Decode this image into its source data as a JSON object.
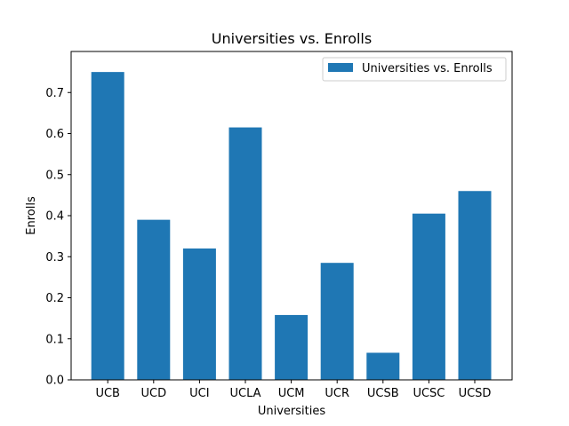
{
  "chart_data": {
    "type": "bar",
    "title": "Universities vs. Enrolls",
    "xlabel": "Universities",
    "ylabel": "Enrolls",
    "categories": [
      "UCB",
      "UCD",
      "UCI",
      "UCLA",
      "UCM",
      "UCR",
      "UCSB",
      "UCSC",
      "UCSD"
    ],
    "series": [
      {
        "name": "Universities vs. Enrolls",
        "values": [
          0.75,
          0.39,
          0.32,
          0.615,
          0.158,
          0.285,
          0.066,
          0.405,
          0.46
        ],
        "color": "#1f77b4"
      }
    ],
    "ylim": [
      0,
      0.8
    ],
    "yticks": [
      0.0,
      0.1,
      0.2,
      0.3,
      0.4,
      0.5,
      0.6,
      0.7
    ],
    "ytick_labels": [
      "0.0",
      "0.1",
      "0.2",
      "0.3",
      "0.4",
      "0.5",
      "0.6",
      "0.7"
    ],
    "grid": false,
    "legend_position": "top-right"
  }
}
